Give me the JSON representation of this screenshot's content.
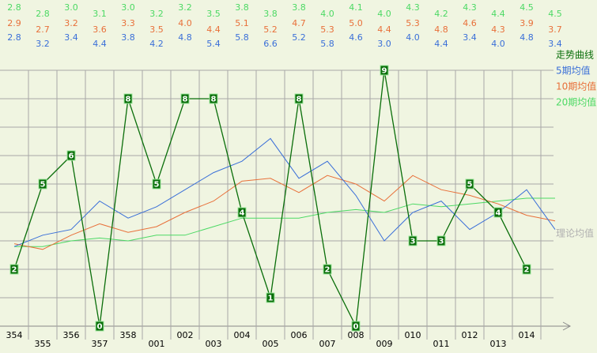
{
  "chart_data": {
    "type": "line",
    "categories": [
      "354",
      "355",
      "356",
      "357",
      "358",
      "001",
      "002",
      "003",
      "004",
      "005",
      "006",
      "007",
      "008",
      "009",
      "010",
      "011",
      "012",
      "013",
      "014",
      null
    ],
    "series": [
      {
        "name": "走势曲线",
        "color": "#0a6e0a",
        "markers": true,
        "values": [
          2,
          5,
          6,
          0,
          8,
          5,
          8,
          8,
          4,
          1,
          8,
          2,
          0,
          9,
          3,
          3,
          5,
          4,
          2,
          null
        ]
      },
      {
        "name": "5期均值",
        "color": "#3a6fd8",
        "values": [
          2.8,
          3.2,
          3.4,
          4.4,
          3.8,
          4.2,
          4.8,
          5.4,
          5.8,
          6.6,
          5.2,
          5.8,
          4.6,
          3.0,
          4.0,
          4.4,
          3.4,
          4.0,
          4.8,
          3.4
        ],
        "value_labels": [
          "2.8",
          "3.2",
          "3.4",
          "4.4",
          "3.8",
          "4.2",
          "4.8",
          "5.4",
          "5.8",
          "6.6",
          "5.2",
          "5.8",
          "4.6",
          "3.0",
          "4.0",
          "4.4",
          "3.4",
          "4.0",
          "4.8",
          "3.4"
        ]
      },
      {
        "name": "10期均值",
        "color": "#e8703a",
        "values": [
          2.9,
          2.7,
          3.2,
          3.6,
          3.3,
          3.5,
          4.0,
          4.4,
          5.1,
          5.2,
          4.7,
          5.3,
          5.0,
          4.4,
          5.3,
          4.8,
          4.6,
          4.3,
          3.9,
          3.7
        ],
        "value_labels": [
          "2.9",
          "2.7",
          "3.2",
          "3.6",
          "3.3",
          "3.5",
          "4.0",
          "4.4",
          "5.1",
          "5.2",
          "4.7",
          "5.3",
          "5.0",
          "4.4",
          "5.3",
          "4.8",
          "4.6",
          "4.3",
          "3.9",
          "3.7"
        ]
      },
      {
        "name": "20期均值",
        "color": "#4cd964",
        "values": [
          2.8,
          2.8,
          3.0,
          3.1,
          3.0,
          3.2,
          3.2,
          3.5,
          3.8,
          3.8,
          3.8,
          4.0,
          4.1,
          4.0,
          4.3,
          4.2,
          4.3,
          4.4,
          4.5,
          4.5
        ],
        "value_labels": [
          "2.8",
          "2.8",
          "3.0",
          "3.1",
          "3.0",
          "3.2",
          "3.2",
          "3.5",
          "3.8",
          "3.8",
          "3.8",
          "4.0",
          "4.1",
          "4.0",
          "4.3",
          "4.2",
          "4.3",
          "4.4",
          "4.5",
          "4.5"
        ]
      }
    ],
    "ylim": [
      0,
      9
    ],
    "grid": true,
    "annotation": "理论均值"
  }
}
